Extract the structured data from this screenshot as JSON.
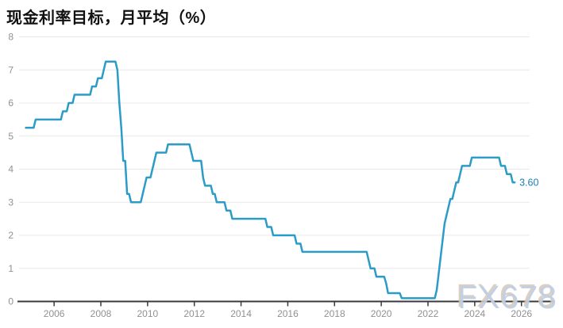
{
  "chart": {
    "title": "现金利率目标，月平均（%）",
    "watermark": "FX678",
    "colors": {
      "line": "#2B9BC7",
      "end_label": "#1B7EB3",
      "grid": "#E8E8E8",
      "axis": "#3A3A3A",
      "tick_label": "#919191",
      "title": "#111111",
      "background": "#FFFFFF"
    }
  },
  "chart_data": {
    "type": "line",
    "title": "现金利率目标，月平均（%）",
    "xlabel": "",
    "ylabel": "",
    "ylim": [
      0,
      8
    ],
    "yticks": [
      0,
      1,
      2,
      3,
      4,
      5,
      6,
      7,
      8
    ],
    "xticks": [
      2006,
      2008,
      2010,
      2012,
      2014,
      2016,
      2018,
      2020,
      2022,
      2024,
      2026
    ],
    "xlim_years": [
      2004.5,
      2026.35
    ],
    "grid": "horizontal",
    "legend": "none",
    "end_label": "3.60",
    "series": [
      {
        "name": "现金利率目标",
        "color": "#2B9BC7",
        "unit": "%",
        "segments_note": "each entry = [first_month, last_month, target_rate_percent]",
        "segments": [
          [
            "2004-10",
            "2005-02",
            5.25
          ],
          [
            "2005-03",
            "2006-04",
            5.5
          ],
          [
            "2006-05",
            "2006-07",
            5.75
          ],
          [
            "2006-08",
            "2006-10",
            6.0
          ],
          [
            "2006-11",
            "2007-07",
            6.25
          ],
          [
            "2007-08",
            "2007-10",
            6.5
          ],
          [
            "2007-11",
            "2008-01",
            6.75
          ],
          [
            "2008-02",
            "2008-02",
            7.0
          ],
          [
            "2008-03",
            "2008-08",
            7.25
          ],
          [
            "2008-09",
            "2008-09",
            7.0
          ],
          [
            "2008-10",
            "2008-10",
            6.0
          ],
          [
            "2008-11",
            "2008-11",
            5.25
          ],
          [
            "2008-12",
            "2009-01",
            4.25
          ],
          [
            "2009-02",
            "2009-03",
            3.25
          ],
          [
            "2009-04",
            "2009-09",
            3.0
          ],
          [
            "2009-10",
            "2009-10",
            3.25
          ],
          [
            "2009-11",
            "2009-11",
            3.5
          ],
          [
            "2009-12",
            "2010-02",
            3.75
          ],
          [
            "2010-03",
            "2010-03",
            4.0
          ],
          [
            "2010-04",
            "2010-04",
            4.25
          ],
          [
            "2010-05",
            "2010-10",
            4.5
          ],
          [
            "2010-11",
            "2011-10",
            4.75
          ],
          [
            "2011-11",
            "2011-11",
            4.5
          ],
          [
            "2011-12",
            "2012-04",
            4.25
          ],
          [
            "2012-05",
            "2012-05",
            3.75
          ],
          [
            "2012-06",
            "2012-09",
            3.5
          ],
          [
            "2012-10",
            "2012-11",
            3.25
          ],
          [
            "2012-12",
            "2013-04",
            3.0
          ],
          [
            "2013-05",
            "2013-07",
            2.75
          ],
          [
            "2013-08",
            "2015-01",
            2.5
          ],
          [
            "2015-02",
            "2015-04",
            2.25
          ],
          [
            "2015-05",
            "2016-04",
            2.0
          ],
          [
            "2016-05",
            "2016-07",
            1.75
          ],
          [
            "2016-08",
            "2019-05",
            1.5
          ],
          [
            "2019-06",
            "2019-06",
            1.25
          ],
          [
            "2019-07",
            "2019-09",
            1.0
          ],
          [
            "2019-10",
            "2020-02",
            0.75
          ],
          [
            "2020-03",
            "2020-03",
            0.55
          ],
          [
            "2020-04",
            "2020-10",
            0.25
          ],
          [
            "2020-11",
            "2022-04",
            0.1
          ],
          [
            "2022-05",
            "2022-05",
            0.35
          ],
          [
            "2022-06",
            "2022-06",
            0.85
          ],
          [
            "2022-07",
            "2022-07",
            1.35
          ],
          [
            "2022-08",
            "2022-08",
            1.85
          ],
          [
            "2022-09",
            "2022-09",
            2.35
          ],
          [
            "2022-10",
            "2022-10",
            2.6
          ],
          [
            "2022-11",
            "2022-11",
            2.85
          ],
          [
            "2022-12",
            "2023-01",
            3.1
          ],
          [
            "2023-02",
            "2023-02",
            3.35
          ],
          [
            "2023-03",
            "2023-04",
            3.6
          ],
          [
            "2023-05",
            "2023-05",
            3.85
          ],
          [
            "2023-06",
            "2023-10",
            4.1
          ],
          [
            "2023-11",
            "2025-01",
            4.35
          ],
          [
            "2025-02",
            "2025-04",
            4.1
          ],
          [
            "2025-05",
            "2025-07",
            3.85
          ],
          [
            "2025-08",
            "2025-09",
            3.6
          ]
        ]
      }
    ]
  }
}
